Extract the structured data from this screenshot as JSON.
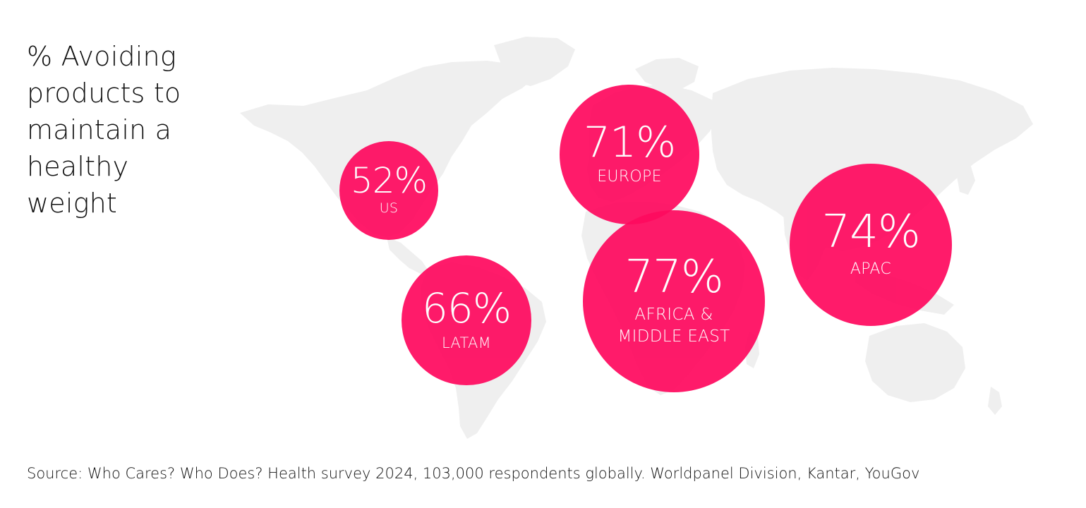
{
  "title": "% Avoiding products to maintain a healthy weight",
  "regions": [
    {
      "id": "us",
      "percent": "52%",
      "label": "US",
      "value": 52
    },
    {
      "id": "europe",
      "percent": "71%",
      "label": "EUROPE",
      "value": 71
    },
    {
      "id": "latam",
      "percent": "66%",
      "label": "LATAM",
      "value": 66
    },
    {
      "id": "africa-middle-east",
      "percent": "77%",
      "label": "AFRICA & MIDDLE EAST",
      "value": 77
    },
    {
      "id": "apac",
      "percent": "74%",
      "label": "APAC",
      "value": 74
    }
  ],
  "source": "Source: Who Cares? Who Does? Health survey 2024, 103,000 respondents globally. Worldpanel Division, Kantar, YouGov",
  "colors": {
    "bubble": "#ff0a5f",
    "map_land": "#efefef",
    "text": "#111111",
    "bubble_text": "#ffffff"
  }
}
